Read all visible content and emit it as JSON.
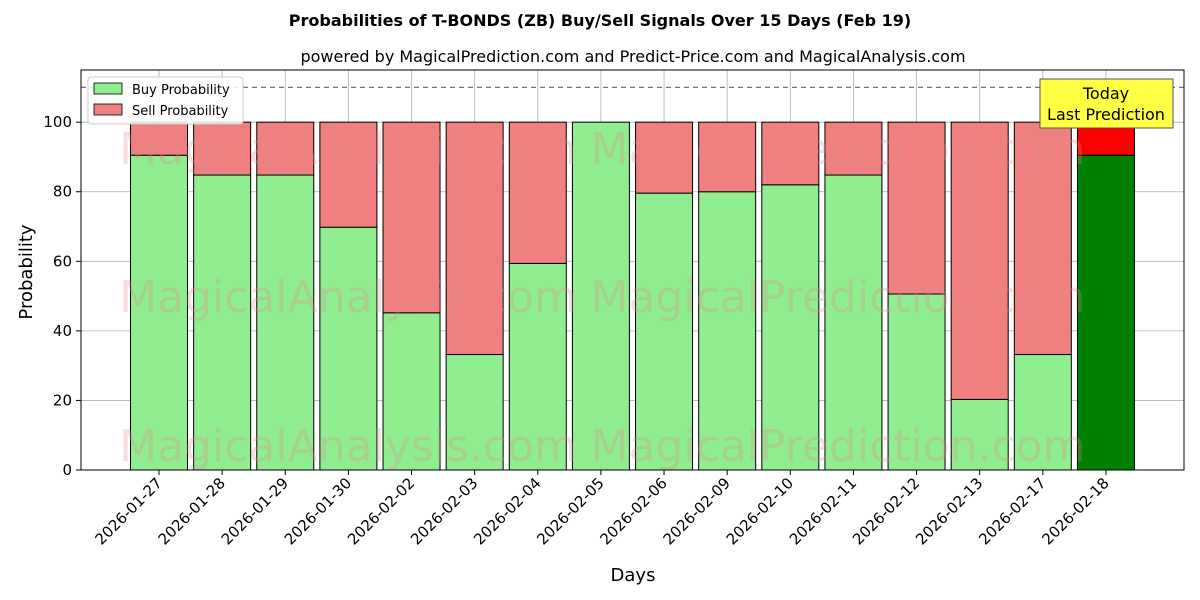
{
  "chart_data": {
    "type": "bar",
    "stacked": true,
    "title": "Probabilities of T-BONDS (ZB) Buy/Sell Signals Over 15 Days (Feb 19)",
    "subtitle": "powered by MagicalPrediction.com and Predict-Price.com and MagicalAnalysis.com",
    "xlabel": "Days",
    "ylabel": "Probability",
    "ylim": [
      0,
      115
    ],
    "yticks": [
      0,
      20,
      40,
      60,
      80,
      100
    ],
    "grid": true,
    "legend_position": "top-left",
    "reference_line": 110,
    "categories": [
      "2026-01-27",
      "2026-01-28",
      "2026-01-29",
      "2026-01-30",
      "2026-02-02",
      "2026-02-03",
      "2026-02-04",
      "2026-02-05",
      "2026-02-06",
      "2026-02-09",
      "2026-02-10",
      "2026-02-11",
      "2026-02-12",
      "2026-02-13",
      "2026-02-17",
      "2026-02-18"
    ],
    "series": [
      {
        "name": "Buy Probability",
        "color": "#90ee90",
        "highlight_color": "#008000",
        "values": [
          90.5,
          84.8,
          84.8,
          69.8,
          45.2,
          33.2,
          59.4,
          100,
          79.6,
          80,
          82,
          84.8,
          50.6,
          20.3,
          33.2,
          90.5
        ]
      },
      {
        "name": "Sell Probability",
        "color": "#f08080",
        "highlight_color": "#ff0000",
        "values": [
          9.5,
          15.2,
          15.2,
          30.2,
          54.8,
          66.8,
          40.6,
          0,
          20.4,
          20,
          18,
          15.2,
          49.4,
          79.7,
          66.8,
          9.5
        ]
      }
    ],
    "highlight_index": 15,
    "annotation": {
      "line1": "Today",
      "line2": "Last Prediction",
      "color": "#ffff44"
    },
    "watermarks": [
      "MagicalAnalysis.com",
      "MagicalPrediction.com"
    ]
  }
}
